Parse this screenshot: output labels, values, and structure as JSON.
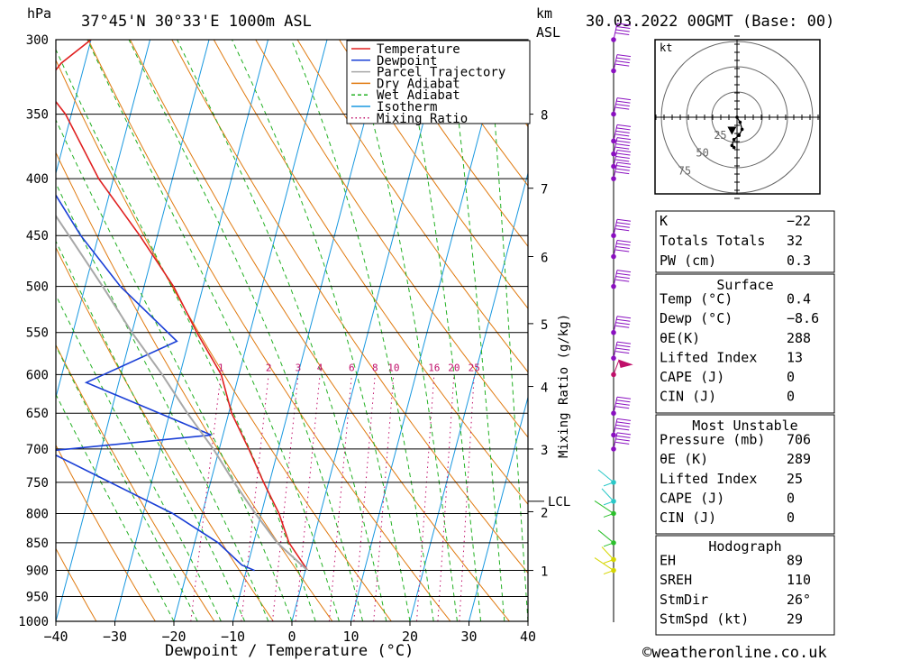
{
  "chart_data": {
    "type": "skew-t",
    "title_location": "37°45'N  30°33'E  1000m  ASL",
    "title_date": "30.03.2022  00GMT  (Base: 00)",
    "hpa_label": "hPa",
    "km_label": "km",
    "asl_label": "ASL",
    "xlabel": "Dewpoint / Temperature (°C)",
    "mixing_axis_label": "Mixing Ratio (g/kg)",
    "lcl_label": "LCL",
    "lcl_pressure": 780,
    "pressure_levels": [
      300,
      350,
      400,
      450,
      500,
      550,
      600,
      650,
      700,
      750,
      800,
      850,
      900,
      950,
      1000
    ],
    "temperature_ticks": [
      -40,
      -30,
      -20,
      -10,
      0,
      10,
      20,
      30,
      40
    ],
    "km_ticks": [
      {
        "km": "1",
        "p": 900
      },
      {
        "km": "2",
        "p": 797
      },
      {
        "km": "3",
        "p": 700
      },
      {
        "km": "4",
        "p": 615
      },
      {
        "km": "5",
        "p": 540
      },
      {
        "km": "6",
        "p": 470
      },
      {
        "km": "7",
        "p": 408
      },
      {
        "km": "8",
        "p": 350
      }
    ],
    "mixing_ratio_labels": [
      "1",
      "2",
      "3",
      "4",
      "6",
      "8",
      "10",
      "16",
      "20",
      "25"
    ],
    "legend": [
      {
        "name": "Temperature",
        "color": "#e02020",
        "style": "solid"
      },
      {
        "name": "Dewpoint",
        "color": "#1a3fd6",
        "style": "solid"
      },
      {
        "name": "Parcel Trajectory",
        "color": "#a8a8a8",
        "style": "solid"
      },
      {
        "name": "Dry Adiabat",
        "color": "#e07a10",
        "style": "solid"
      },
      {
        "name": "Wet Adiabat",
        "color": "#22b022",
        "style": "dashed"
      },
      {
        "name": "Isotherm",
        "color": "#1898e0",
        "style": "solid"
      },
      {
        "name": "Mixing Ratio",
        "color": "#c0106a",
        "style": "dotted"
      }
    ],
    "series": [
      {
        "name": "Temperature",
        "points": [
          {
            "p": 900,
            "t": 0.4
          },
          {
            "p": 850,
            "t": -4
          },
          {
            "p": 800,
            "t": -7
          },
          {
            "p": 750,
            "t": -11
          },
          {
            "p": 700,
            "t": -15
          },
          {
            "p": 650,
            "t": -19.5
          },
          {
            "p": 600,
            "t": -23
          },
          {
            "p": 550,
            "t": -29
          },
          {
            "p": 500,
            "t": -35
          },
          {
            "p": 450,
            "t": -43
          },
          {
            "p": 400,
            "t": -52.5
          },
          {
            "p": 350,
            "t": -61
          },
          {
            "p": 330,
            "t": -66
          },
          {
            "p": 315,
            "t": -64
          },
          {
            "p": 300,
            "t": -60
          }
        ]
      },
      {
        "name": "Dewpoint",
        "points": [
          {
            "p": 900,
            "t": -8.6
          },
          {
            "p": 890,
            "t": -11
          },
          {
            "p": 850,
            "t": -16
          },
          {
            "p": 800,
            "t": -25
          },
          {
            "p": 750,
            "t": -37
          },
          {
            "p": 703,
            "t": -49
          },
          {
            "p": 680,
            "t": -22
          },
          {
            "p": 610,
            "t": -45.5
          },
          {
            "p": 560,
            "t": -32
          },
          {
            "p": 500,
            "t": -44
          },
          {
            "p": 450,
            "t": -53
          },
          {
            "p": 400,
            "t": -61.5
          },
          {
            "p": 380,
            "t": -67
          },
          {
            "p": 350,
            "t": -73
          },
          {
            "p": 330,
            "t": -79
          },
          {
            "p": 300,
            "t": -80
          }
        ]
      },
      {
        "name": "Parcel Trajectory",
        "points": [
          {
            "p": 900,
            "t": 0.4
          },
          {
            "p": 850,
            "t": -6
          },
          {
            "p": 800,
            "t": -11
          },
          {
            "p": 750,
            "t": -16
          },
          {
            "p": 700,
            "t": -21
          },
          {
            "p": 650,
            "t": -27
          },
          {
            "p": 600,
            "t": -33
          },
          {
            "p": 550,
            "t": -40
          },
          {
            "p": 500,
            "t": -47
          },
          {
            "p": 450,
            "t": -55
          },
          {
            "p": 400,
            "t": -64
          },
          {
            "p": 350,
            "t": -74
          },
          {
            "p": 300,
            "t": -85
          }
        ]
      }
    ],
    "wind_profile_levels": [
      300,
      320,
      350,
      370,
      380,
      390,
      400,
      450,
      470,
      500,
      550,
      580,
      600,
      650,
      680,
      700,
      750,
      780,
      800,
      850,
      880,
      900
    ],
    "hodograph": {
      "unit": "kt",
      "ring_labels": [
        "25",
        "50",
        "75"
      ],
      "points": [
        {
          "u": 0,
          "v": 0
        },
        {
          "u": 3,
          "v": -5
        },
        {
          "u": 5,
          "v": -12
        },
        {
          "u": 2,
          "v": -18
        },
        {
          "u": -3,
          "v": -22
        },
        {
          "u": -5,
          "v": -28
        },
        {
          "u": -3,
          "v": -30
        }
      ],
      "storm_motion": {
        "u": -5,
        "v": -13
      }
    },
    "stats": {
      "top": [
        {
          "label": "K",
          "value": "-22"
        },
        {
          "label": "Totals Totals",
          "value": "32"
        },
        {
          "label": "PW (cm)",
          "value": "0.3"
        }
      ],
      "surface": {
        "title": "Surface",
        "rows": [
          {
            "label": "Temp (°C)",
            "value": "0.4"
          },
          {
            "label": "Dewp (°C)",
            "value": "-8.6"
          },
          {
            "label": "θE(K)",
            "value": "288"
          },
          {
            "label": "Lifted Index",
            "value": "13"
          },
          {
            "label": "CAPE (J)",
            "value": "0"
          },
          {
            "label": "CIN (J)",
            "value": "0"
          }
        ]
      },
      "most_unstable": {
        "title": "Most Unstable",
        "rows": [
          {
            "label": "Pressure (mb)",
            "value": "706"
          },
          {
            "label": "θE (K)",
            "value": "289"
          },
          {
            "label": "Lifted Index",
            "value": "25"
          },
          {
            "label": "CAPE (J)",
            "value": "0"
          },
          {
            "label": "CIN (J)",
            "value": "0"
          }
        ]
      },
      "hodograph_stats": {
        "title": "Hodograph",
        "rows": [
          {
            "label": "EH",
            "value": "89"
          },
          {
            "label": "SREH",
            "value": "110"
          },
          {
            "label": "StmDir",
            "value": "26°"
          },
          {
            "label": "StmSpd (kt)",
            "value": "29"
          }
        ]
      }
    },
    "credit": "©weatheronline.co.uk"
  }
}
